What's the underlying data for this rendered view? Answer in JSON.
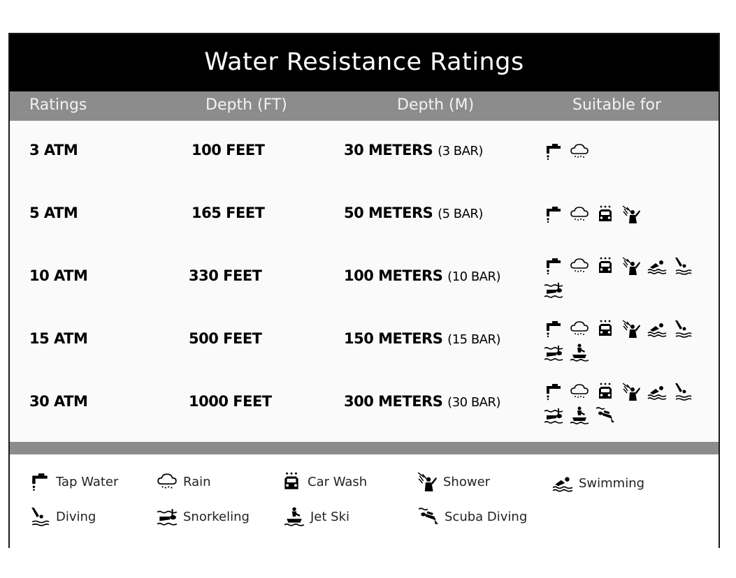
{
  "title": "Water Resistance Ratings",
  "headers": {
    "ratings": "Ratings",
    "depth_ft": "Depth (FT)",
    "depth_m": "Depth (M)",
    "suitable": "Suitable for"
  },
  "rows": [
    {
      "rating": "3 ATM",
      "feet": "100 FEET",
      "meters": "30 METERS",
      "bar": "(3 BAR)",
      "icons": [
        "tap-water",
        "rain"
      ]
    },
    {
      "rating": "5 ATM",
      "feet": "165 FEET",
      "meters": "50 METERS",
      "bar": "(5 BAR)",
      "icons": [
        "tap-water",
        "rain",
        "car-wash",
        "shower"
      ]
    },
    {
      "rating": "10 ATM",
      "feet": "330 FEET",
      "meters": "100 METERS",
      "bar": "(10 BAR)",
      "icons": [
        "tap-water",
        "rain",
        "car-wash",
        "shower",
        "swimming",
        "diving",
        "snorkeling"
      ]
    },
    {
      "rating": "15 ATM",
      "feet": "500 FEET",
      "meters": "150 METERS",
      "bar": "(15 BAR)",
      "icons": [
        "tap-water",
        "rain",
        "car-wash",
        "shower",
        "swimming",
        "diving",
        "snorkeling",
        "jet-ski"
      ]
    },
    {
      "rating": "30 ATM",
      "feet": "1000 FEET",
      "meters": "300 METERS",
      "bar": "(30 BAR)",
      "icons": [
        "tap-water",
        "rain",
        "car-wash",
        "shower",
        "swimming",
        "diving",
        "snorkeling",
        "jet-ski",
        "scuba-diving"
      ]
    }
  ],
  "legend": {
    "tap_water": "Tap Water",
    "rain": "Rain",
    "car_wash": "Car Wash",
    "shower": "Shower",
    "swimming": "Swimming",
    "diving": "Diving",
    "snorkeling": "Snorkeling",
    "jet_ski": "Jet Ski",
    "scuba_diving": "Scuba Diving"
  },
  "colors": {
    "title_bg": "#000000",
    "header_bg": "#8c8c8c",
    "header_text": "#f2f2f2"
  }
}
